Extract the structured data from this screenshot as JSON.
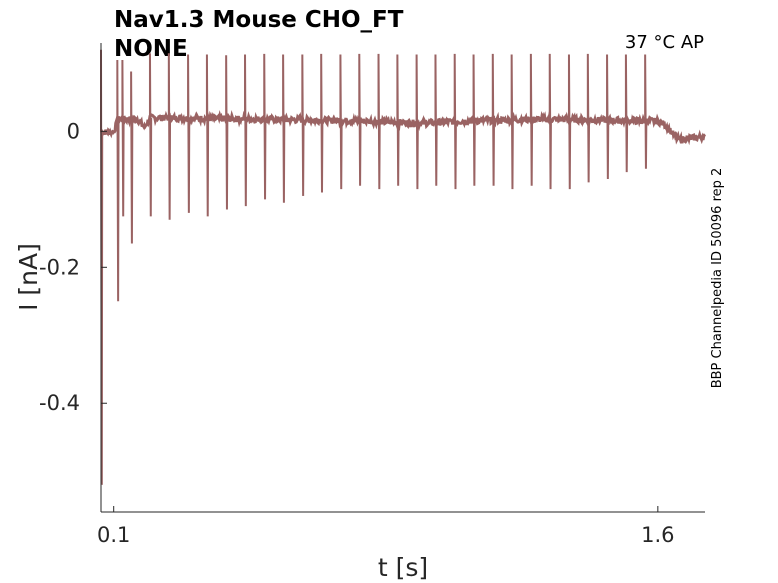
{
  "chart_data": {
    "type": "line",
    "title": "Nav1.3  Mouse  CHO_FT",
    "subtitle": "NONE",
    "annotation": "37 °C  AP",
    "side_label": "BBP Channelpedia ID 50096 rep 2",
    "xlabel": "t [s]",
    "ylabel": "I [nA]",
    "xlim": [
      0.065,
      1.73
    ],
    "ylim": [
      -0.56,
      0.13
    ],
    "x_ticks": [
      0.1,
      1.6
    ],
    "x_tick_labels": [
      "0.1",
      "1.6"
    ],
    "y_ticks": [
      0,
      -0.2,
      -0.4
    ],
    "y_tick_labels": [
      "0",
      "-0.2",
      "-0.4"
    ],
    "grid": false,
    "series": [
      {
        "color": "#9a6363",
        "baseline": [
          [
            0.065,
            -0.001
          ],
          [
            0.1,
            -0.001
          ],
          [
            0.112,
            0.018
          ],
          [
            0.165,
            0.018
          ],
          [
            0.185,
            0.006
          ],
          [
            0.2,
            0.02
          ],
          [
            0.5,
            0.018
          ],
          [
            0.8,
            0.015
          ],
          [
            0.95,
            0.012
          ],
          [
            1.1,
            0.016
          ],
          [
            1.3,
            0.018
          ],
          [
            1.6,
            0.015
          ],
          [
            1.62,
            0.01
          ],
          [
            1.655,
            -0.012
          ],
          [
            1.73,
            -0.008
          ]
        ],
        "spikes": [
          {
            "t": 0.065,
            "peak": 0.12,
            "trough": -0.52
          },
          {
            "t": 0.11,
            "peak": 0.105,
            "trough": -0.25
          },
          {
            "t": 0.124,
            "peak": 0.105,
            "trough": -0.125
          },
          {
            "t": 0.148,
            "peak": 0.088,
            "trough": -0.165
          },
          {
            "t": 0.2,
            "peak": 0.115,
            "trough": -0.125
          },
          {
            "t": 0.252,
            "peak": 0.115,
            "trough": -0.13
          },
          {
            "t": 0.305,
            "peak": 0.113,
            "trough": -0.12
          },
          {
            "t": 0.357,
            "peak": 0.113,
            "trough": -0.125
          },
          {
            "t": 0.41,
            "peak": 0.112,
            "trough": -0.115
          },
          {
            "t": 0.462,
            "peak": 0.113,
            "trough": -0.11
          },
          {
            "t": 0.515,
            "peak": 0.114,
            "trough": -0.1
          },
          {
            "t": 0.567,
            "peak": 0.113,
            "trough": -0.105
          },
          {
            "t": 0.62,
            "peak": 0.113,
            "trough": -0.095
          },
          {
            "t": 0.672,
            "peak": 0.114,
            "trough": -0.09
          },
          {
            "t": 0.725,
            "peak": 0.113,
            "trough": -0.085
          },
          {
            "t": 0.777,
            "peak": 0.114,
            "trough": -0.08
          },
          {
            "t": 0.83,
            "peak": 0.114,
            "trough": -0.085
          },
          {
            "t": 0.882,
            "peak": 0.113,
            "trough": -0.08
          },
          {
            "t": 0.935,
            "peak": 0.113,
            "trough": -0.085
          },
          {
            "t": 0.987,
            "peak": 0.113,
            "trough": -0.08
          },
          {
            "t": 1.04,
            "peak": 0.114,
            "trough": -0.085
          },
          {
            "t": 1.092,
            "peak": 0.113,
            "trough": -0.08
          },
          {
            "t": 1.145,
            "peak": 0.114,
            "trough": -0.08
          },
          {
            "t": 1.197,
            "peak": 0.113,
            "trough": -0.085
          },
          {
            "t": 1.25,
            "peak": 0.114,
            "trough": -0.08
          },
          {
            "t": 1.302,
            "peak": 0.114,
            "trough": -0.085
          },
          {
            "t": 1.355,
            "peak": 0.113,
            "trough": -0.085
          },
          {
            "t": 1.407,
            "peak": 0.114,
            "trough": -0.075
          },
          {
            "t": 1.46,
            "peak": 0.113,
            "trough": -0.07
          },
          {
            "t": 1.512,
            "peak": 0.113,
            "trough": -0.06
          },
          {
            "t": 1.565,
            "peak": 0.113,
            "trough": -0.055
          }
        ]
      }
    ]
  }
}
